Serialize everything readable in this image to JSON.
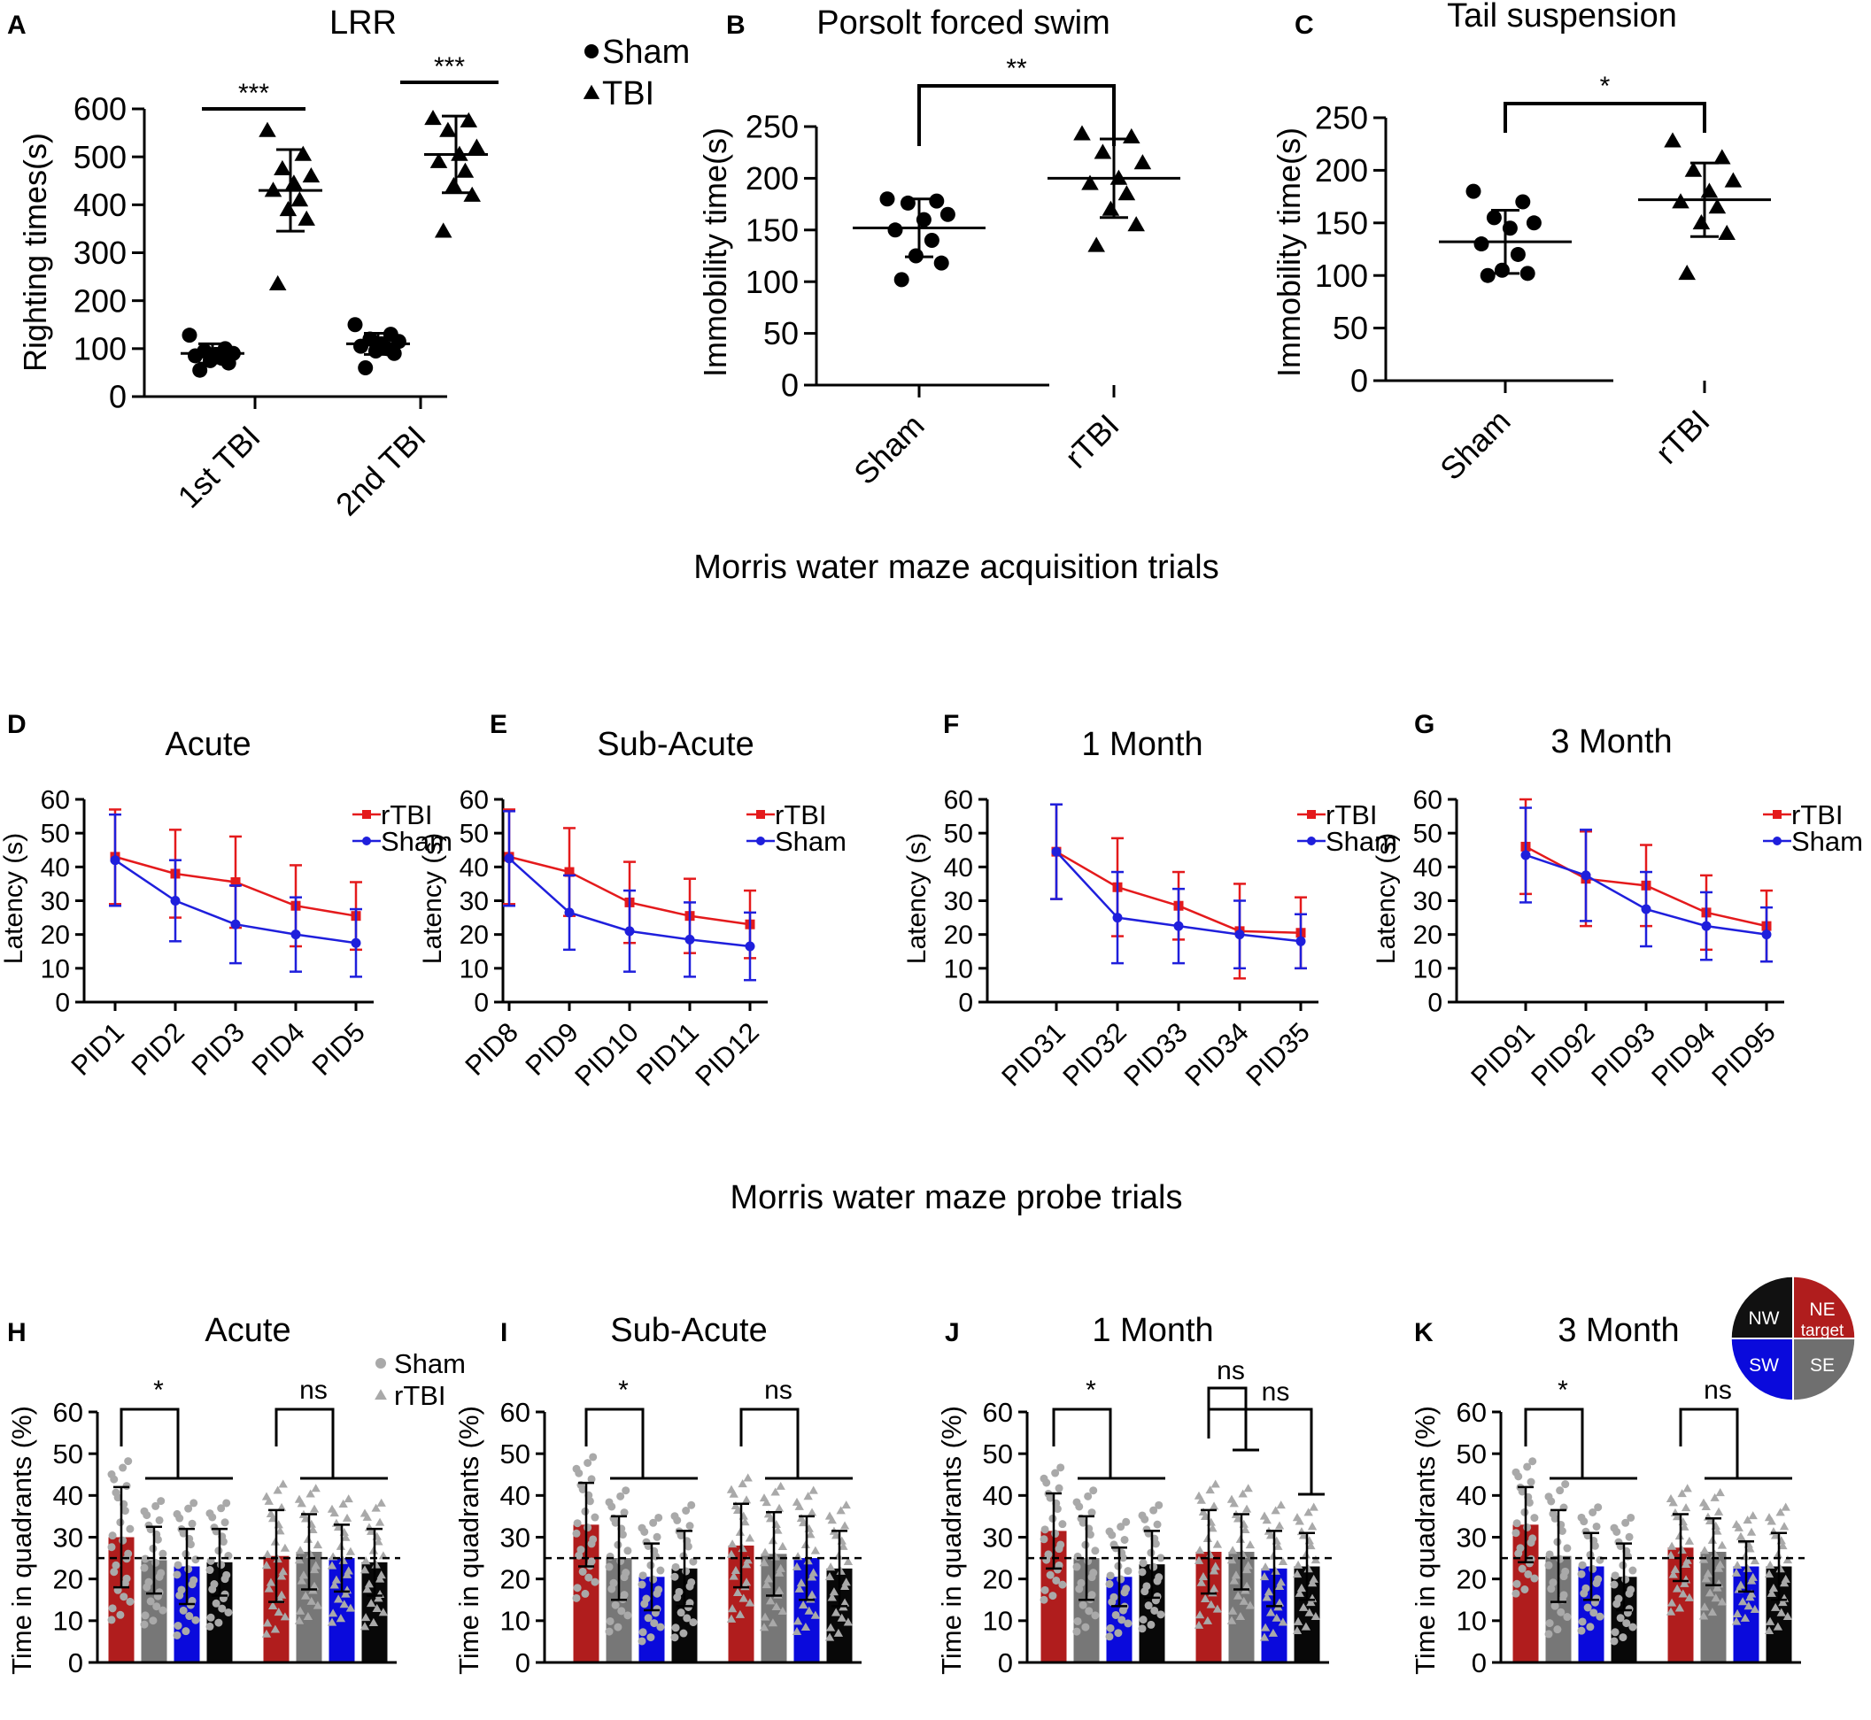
{
  "figure": {
    "section_acquisition_title": "Morris water maze acquisition trials",
    "section_probe_title": "Morris water maze probe trials"
  },
  "colors": {
    "ink": "#000000",
    "rtbi_red": "#e41a1c",
    "sham_blue": "#1f1fdc",
    "bar_red": "#b01d1d",
    "bar_gray": "#777777",
    "bar_blue": "#0a0adc",
    "bar_black": "#080808",
    "point_gray": "#a9a9a9",
    "quad_nw": "#111111",
    "quad_ne": "#b01d1d",
    "quad_sw": "#0a0adc",
    "quad_se": "#6f6f6f"
  },
  "chart_data": [
    {
      "panel": "A",
      "type": "scatter",
      "title": "LRR",
      "ylabel": "Righting times(s)",
      "ylim": [
        0,
        600
      ],
      "yticks": [
        0,
        100,
        200,
        300,
        400,
        500,
        600
      ],
      "categories": [
        "1st TBI",
        "2nd TBI"
      ],
      "legend": [
        {
          "marker": "circle",
          "label": "Sham"
        },
        {
          "marker": "triangle",
          "label": "TBI"
        }
      ],
      "groups": [
        {
          "category": "1st TBI",
          "name": "Sham",
          "marker": "circle",
          "mean": 90,
          "sd": 20,
          "points": [
            128,
            100,
            95,
            90,
            88,
            85,
            80,
            75,
            70,
            55
          ]
        },
        {
          "category": "1st TBI",
          "name": "TBI",
          "marker": "triangle",
          "mean": 430,
          "sd": 85,
          "points": [
            555,
            505,
            475,
            460,
            445,
            430,
            410,
            390,
            370,
            235
          ]
        },
        {
          "category": "2nd TBI",
          "name": "Sham",
          "marker": "circle",
          "mean": 110,
          "sd": 22,
          "points": [
            150,
            130,
            120,
            115,
            110,
            105,
            100,
            95,
            90,
            60
          ]
        },
        {
          "category": "2nd TBI",
          "name": "TBI",
          "marker": "triangle",
          "mean": 505,
          "sd": 80,
          "points": [
            580,
            575,
            555,
            520,
            505,
            490,
            470,
            440,
            420,
            345
          ]
        }
      ],
      "significance": [
        {
          "label": "***",
          "category": "1st TBI"
        },
        {
          "label": "***",
          "category": "2nd TBI"
        }
      ]
    },
    {
      "panel": "B",
      "type": "scatter",
      "title": "Porsolt forced swim",
      "ylabel": "Immobility time(s)",
      "ylim": [
        0,
        250
      ],
      "yticks": [
        0,
        50,
        100,
        150,
        200,
        250
      ],
      "categories": [
        "Sham",
        "rTBI"
      ],
      "groups": [
        {
          "category": "Sham",
          "marker": "circle",
          "mean": 152,
          "sd": 28,
          "points": [
            180,
            178,
            176,
            165,
            160,
            150,
            140,
            125,
            118,
            102
          ]
        },
        {
          "category": "rTBI",
          "marker": "triangle",
          "mean": 200,
          "sd": 38,
          "points": [
            243,
            240,
            225,
            215,
            200,
            195,
            185,
            170,
            155,
            135
          ]
        }
      ],
      "significance": [
        {
          "label": "**",
          "from": "Sham",
          "to": "rTBI"
        }
      ]
    },
    {
      "panel": "C",
      "type": "scatter",
      "title": "Tail suspension",
      "ylabel": "Immobility time(s)",
      "ylim": [
        0,
        250
      ],
      "yticks": [
        0,
        50,
        100,
        150,
        200,
        250
      ],
      "categories": [
        "Sham",
        "rTBI"
      ],
      "groups": [
        {
          "category": "Sham",
          "marker": "circle",
          "mean": 132,
          "sd": 30,
          "points": [
            180,
            170,
            155,
            150,
            145,
            130,
            120,
            105,
            102,
            100
          ]
        },
        {
          "category": "rTBI",
          "marker": "triangle",
          "mean": 172,
          "sd": 35,
          "points": [
            228,
            212,
            200,
            190,
            180,
            170,
            165,
            150,
            140,
            102
          ]
        }
      ],
      "significance": [
        {
          "label": "*",
          "from": "Sham",
          "to": "rTBI"
        }
      ]
    },
    {
      "panel": "D",
      "type": "line",
      "title": "Acute",
      "ylabel": "Latency (s)",
      "ylim": [
        0,
        60
      ],
      "yticks": [
        0,
        10,
        20,
        30,
        40,
        50,
        60
      ],
      "x": [
        "PID1",
        "PID2",
        "PID3",
        "PID4",
        "PID5"
      ],
      "series": [
        {
          "name": "rTBI",
          "values": [
            43,
            38,
            35.5,
            28.5,
            25.5
          ],
          "err": [
            14,
            13,
            13.5,
            12,
            10
          ]
        },
        {
          "name": "Sham",
          "values": [
            42,
            30,
            23,
            20,
            17.5
          ],
          "err": [
            13.5,
            12,
            11.5,
            11,
            10
          ]
        }
      ]
    },
    {
      "panel": "E",
      "type": "line",
      "title": "Sub-Acute",
      "ylabel": "Latency (s)",
      "ylim": [
        0,
        60
      ],
      "yticks": [
        0,
        10,
        20,
        30,
        40,
        50,
        60
      ],
      "x": [
        "PID8",
        "PID9",
        "PID10",
        "PID11",
        "PID12"
      ],
      "series": [
        {
          "name": "rTBI",
          "values": [
            43,
            38.5,
            29.5,
            25.5,
            23
          ],
          "err": [
            14,
            13,
            12,
            11,
            10
          ]
        },
        {
          "name": "Sham",
          "values": [
            42.5,
            26.5,
            21,
            18.5,
            16.5
          ],
          "err": [
            14,
            11,
            12,
            11,
            10
          ]
        }
      ]
    },
    {
      "panel": "F",
      "type": "line",
      "title": "1 Month",
      "ylabel": "Latency (s)",
      "ylim": [
        0,
        60
      ],
      "yticks": [
        0,
        10,
        20,
        30,
        40,
        50,
        60
      ],
      "x": [
        "PID31",
        "PID32",
        "PID33",
        "PID34",
        "PID35"
      ],
      "series": [
        {
          "name": "rTBI",
          "values": [
            44.5,
            34,
            28.5,
            21,
            20.5
          ],
          "err": [
            14,
            14.5,
            10,
            14,
            10.5
          ]
        },
        {
          "name": "Sham",
          "values": [
            44.5,
            25,
            22.5,
            20,
            18
          ],
          "err": [
            14,
            13.5,
            11,
            10,
            8
          ]
        }
      ]
    },
    {
      "panel": "G",
      "type": "line",
      "title": "3 Month",
      "ylabel": "Latency (s)",
      "ylim": [
        0,
        60
      ],
      "yticks": [
        0,
        10,
        20,
        30,
        40,
        50,
        60
      ],
      "x": [
        "PID91",
        "PID92",
        "PID93",
        "PID94",
        "PID95"
      ],
      "series": [
        {
          "name": "rTBI",
          "values": [
            46,
            36.5,
            34.5,
            26.5,
            22.5
          ],
          "err": [
            14,
            14,
            12,
            11,
            10.5
          ]
        },
        {
          "name": "Sham",
          "values": [
            43.5,
            37.5,
            27.5,
            22.5,
            20
          ],
          "err": [
            14,
            13.5,
            11,
            10,
            8
          ]
        }
      ]
    },
    {
      "panel": "H",
      "type": "bar",
      "title": "Acute",
      "ylabel": "Time in quadrants (%)",
      "ylim": [
        0,
        60
      ],
      "yticks": [
        0,
        10,
        20,
        30,
        40,
        50,
        60
      ],
      "chance_line": 25,
      "legend": [
        {
          "marker": "circle",
          "label": "Sham"
        },
        {
          "marker": "triangle",
          "label": "rTBI"
        }
      ],
      "groups": [
        {
          "name": "Sham",
          "marker": "circle",
          "bars": [
            {
              "quadrant": "NE",
              "value": 30,
              "sd": 12
            },
            {
              "quadrant": "SE",
              "value": 24.5,
              "sd": 8
            },
            {
              "quadrant": "SW",
              "value": 23,
              "sd": 9
            },
            {
              "quadrant": "NW",
              "value": 24,
              "sd": 8
            }
          ]
        },
        {
          "name": "rTBI",
          "marker": "triangle",
          "bars": [
            {
              "quadrant": "NE",
              "value": 25.5,
              "sd": 11
            },
            {
              "quadrant": "SE",
              "value": 26.5,
              "sd": 9
            },
            {
              "quadrant": "SW",
              "value": 25,
              "sd": 8
            },
            {
              "quadrant": "NW",
              "value": 24,
              "sd": 8
            }
          ]
        }
      ],
      "significance": [
        "*",
        "ns"
      ]
    },
    {
      "panel": "I",
      "type": "bar",
      "title": "Sub-Acute",
      "ylabel": "Time in quadrants (%)",
      "ylim": [
        0,
        60
      ],
      "yticks": [
        0,
        10,
        20,
        30,
        40,
        50,
        60
      ],
      "chance_line": 25,
      "groups": [
        {
          "name": "Sham",
          "marker": "circle",
          "bars": [
            {
              "quadrant": "NE",
              "value": 33,
              "sd": 10
            },
            {
              "quadrant": "SE",
              "value": 25,
              "sd": 10
            },
            {
              "quadrant": "SW",
              "value": 20.5,
              "sd": 8
            },
            {
              "quadrant": "NW",
              "value": 22.5,
              "sd": 9
            }
          ]
        },
        {
          "name": "rTBI",
          "marker": "triangle",
          "bars": [
            {
              "quadrant": "NE",
              "value": 28,
              "sd": 10
            },
            {
              "quadrant": "SE",
              "value": 26,
              "sd": 10
            },
            {
              "quadrant": "SW",
              "value": 25,
              "sd": 10
            },
            {
              "quadrant": "NW",
              "value": 22.5,
              "sd": 9
            }
          ]
        }
      ],
      "significance": [
        "*",
        "ns"
      ]
    },
    {
      "panel": "J",
      "type": "bar",
      "title": "1 Month",
      "ylabel": "Time in quadrants (%)",
      "ylim": [
        0,
        60
      ],
      "yticks": [
        0,
        10,
        20,
        30,
        40,
        50,
        60
      ],
      "chance_line": 25,
      "groups": [
        {
          "name": "Sham",
          "marker": "circle",
          "bars": [
            {
              "quadrant": "NE",
              "value": 31.5,
              "sd": 9
            },
            {
              "quadrant": "SE",
              "value": 25,
              "sd": 10
            },
            {
              "quadrant": "SW",
              "value": 20.5,
              "sd": 7
            },
            {
              "quadrant": "NW",
              "value": 23.5,
              "sd": 8
            }
          ]
        },
        {
          "name": "rTBI",
          "marker": "triangle",
          "bars": [
            {
              "quadrant": "NE",
              "value": 26.5,
              "sd": 10
            },
            {
              "quadrant": "SE",
              "value": 26.5,
              "sd": 9
            },
            {
              "quadrant": "SW",
              "value": 22.5,
              "sd": 9
            },
            {
              "quadrant": "NW",
              "value": 23,
              "sd": 8
            }
          ]
        }
      ],
      "significance": [
        "*",
        "ns",
        "ns"
      ]
    },
    {
      "panel": "K",
      "type": "bar",
      "title": "3 Month",
      "ylabel": "Time in quadrants (%)",
      "ylim": [
        0,
        60
      ],
      "yticks": [
        0,
        10,
        20,
        30,
        40,
        50,
        60
      ],
      "chance_line": 25,
      "groups": [
        {
          "name": "Sham",
          "marker": "circle",
          "bars": [
            {
              "quadrant": "NE",
              "value": 33,
              "sd": 9
            },
            {
              "quadrant": "SE",
              "value": 25.5,
              "sd": 11
            },
            {
              "quadrant": "SW",
              "value": 23,
              "sd": 8
            },
            {
              "quadrant": "NW",
              "value": 20.5,
              "sd": 8
            }
          ]
        },
        {
          "name": "rTBI",
          "marker": "triangle",
          "bars": [
            {
              "quadrant": "NE",
              "value": 27.5,
              "sd": 8
            },
            {
              "quadrant": "SE",
              "value": 26.5,
              "sd": 8
            },
            {
              "quadrant": "SW",
              "value": 23,
              "sd": 6
            },
            {
              "quadrant": "NW",
              "value": 23,
              "sd": 8
            }
          ]
        }
      ],
      "significance": [
        "*",
        "ns"
      ],
      "quadrant_key": [
        "NW",
        "NE",
        "target",
        "SW",
        "SE"
      ]
    }
  ]
}
